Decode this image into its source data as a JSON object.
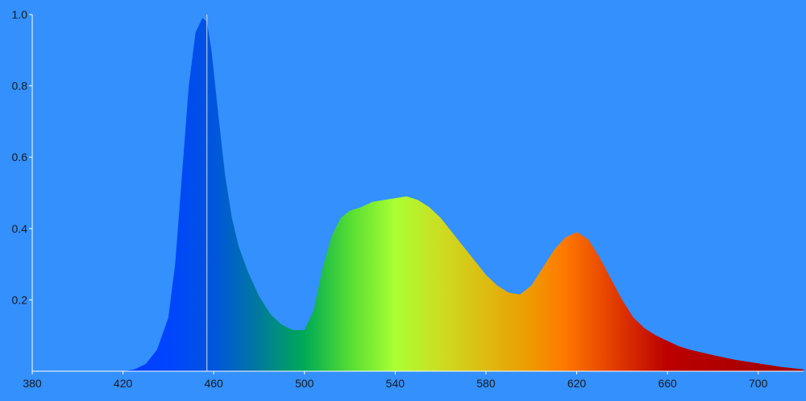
{
  "chart_data": {
    "type": "area",
    "title": "",
    "xlabel": "",
    "ylabel": "",
    "xlim": [
      380,
      720
    ],
    "ylim": [
      0,
      1.0
    ],
    "x_ticks": [
      "380",
      "420",
      "460",
      "500",
      "540",
      "580",
      "620",
      "660",
      "700"
    ],
    "x_tick_values": [
      380,
      420,
      460,
      500,
      540,
      580,
      620,
      660,
      700
    ],
    "y_ticks": [
      "0.2",
      "0.4",
      "0.6",
      "0.8",
      "1.0"
    ],
    "y_tick_values": [
      0.2,
      0.4,
      0.6,
      0.8,
      1.0
    ],
    "grid": false,
    "legend": "none",
    "marker_line_x": 457,
    "series": [
      {
        "x": [
          420,
          425,
          430,
          435,
          440,
          443,
          446,
          449,
          452,
          455,
          457,
          459,
          462,
          465,
          468,
          471,
          475,
          480,
          485,
          490,
          495,
          500,
          504,
          508,
          512,
          516,
          520,
          525,
          530,
          535,
          540,
          545,
          550,
          555,
          560,
          565,
          570,
          575,
          580,
          585,
          590,
          595,
          600,
          605,
          610,
          615,
          620,
          625,
          630,
          635,
          640,
          645,
          650,
          655,
          660,
          665,
          670,
          680,
          690,
          700,
          710,
          720
        ],
        "y": [
          0.0,
          0.005,
          0.02,
          0.06,
          0.15,
          0.3,
          0.55,
          0.8,
          0.95,
          0.99,
          0.98,
          0.9,
          0.72,
          0.55,
          0.43,
          0.35,
          0.28,
          0.21,
          0.16,
          0.13,
          0.115,
          0.115,
          0.17,
          0.29,
          0.38,
          0.43,
          0.45,
          0.46,
          0.475,
          0.48,
          0.485,
          0.49,
          0.48,
          0.46,
          0.43,
          0.39,
          0.35,
          0.31,
          0.27,
          0.24,
          0.22,
          0.215,
          0.24,
          0.29,
          0.34,
          0.375,
          0.39,
          0.37,
          0.32,
          0.26,
          0.2,
          0.15,
          0.12,
          0.1,
          0.085,
          0.07,
          0.06,
          0.045,
          0.032,
          0.022,
          0.012,
          0.005
        ]
      }
    ],
    "colors": {
      "background": "#3390fd",
      "axis": "#ffffff",
      "marker_line": "#dddddd",
      "spectrum_stops": [
        {
          "x": 380,
          "color": "#0033ff"
        },
        {
          "x": 440,
          "color": "#0044ff"
        },
        {
          "x": 460,
          "color": "#0055dd"
        },
        {
          "x": 480,
          "color": "#007a9c"
        },
        {
          "x": 500,
          "color": "#00aa55"
        },
        {
          "x": 520,
          "color": "#55dd33"
        },
        {
          "x": 540,
          "color": "#aaff33"
        },
        {
          "x": 560,
          "color": "#ccdd22"
        },
        {
          "x": 580,
          "color": "#ddbb11"
        },
        {
          "x": 600,
          "color": "#ee9900"
        },
        {
          "x": 615,
          "color": "#ff7700"
        },
        {
          "x": 640,
          "color": "#dd3300"
        },
        {
          "x": 660,
          "color": "#bb0000"
        },
        {
          "x": 720,
          "color": "#a00000"
        }
      ]
    }
  }
}
